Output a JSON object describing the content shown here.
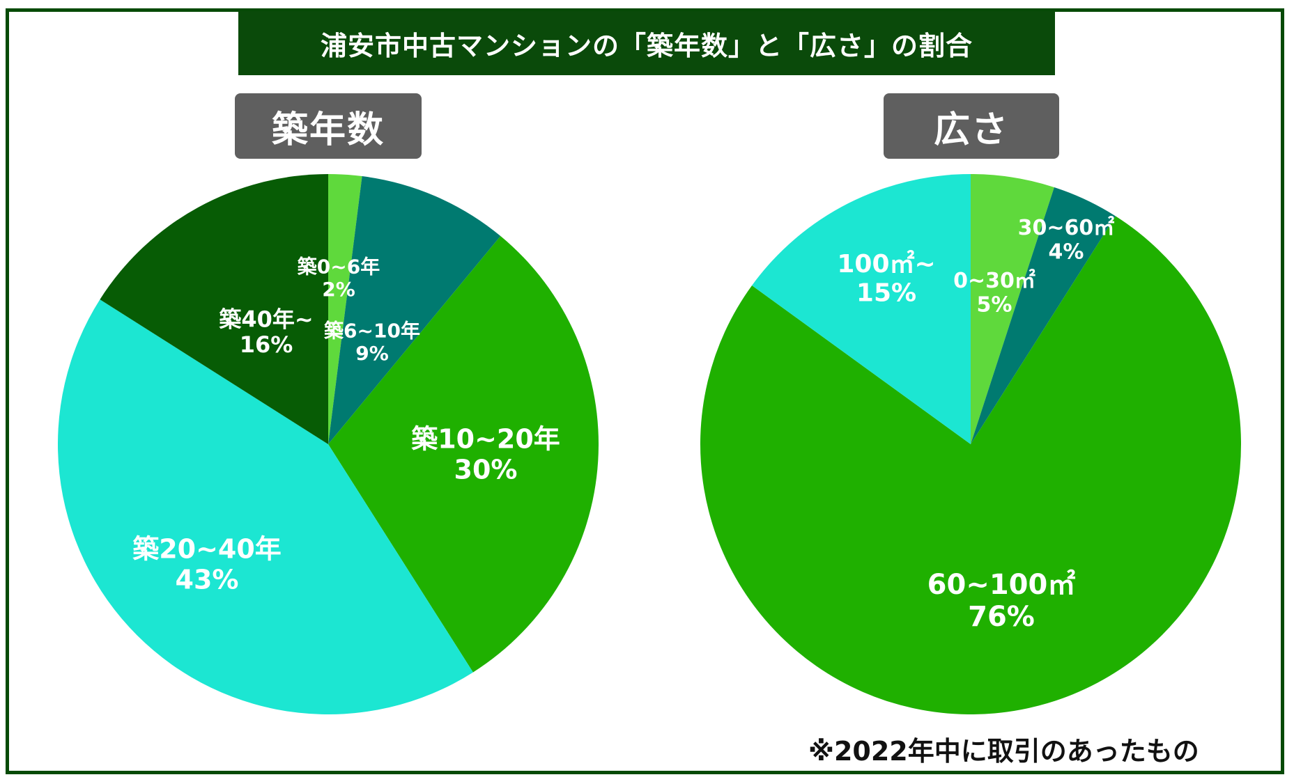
{
  "header": {
    "title": "浦安市中古マンションの「築年数」と「広さ」の割合"
  },
  "footnote": "※2022年中に取引のあったもの",
  "chart_data": [
    {
      "type": "pie",
      "title": "築年数",
      "slices": [
        {
          "label": "築0~6年",
          "percent_label": "2%",
          "value": 2,
          "color": "#5fd93c"
        },
        {
          "label": "築6~10年",
          "percent_label": "9%",
          "value": 9,
          "color": "#007a70"
        },
        {
          "label": "築10~20年",
          "percent_label": "30%",
          "value": 30,
          "color": "#1fb000"
        },
        {
          "label": "築20~40年",
          "percent_label": "43%",
          "value": 43,
          "color": "#1ce6d2"
        },
        {
          "label": "築40年~",
          "percent_label": "16%",
          "value": 16,
          "color": "#075c05"
        }
      ]
    },
    {
      "type": "pie",
      "title": "広さ",
      "slices": [
        {
          "label": "0~30㎡",
          "percent_label": "5%",
          "value": 5,
          "color": "#5fd93c"
        },
        {
          "label": "30~60㎡",
          "percent_label": "4%",
          "value": 4,
          "color": "#007a70"
        },
        {
          "label": "60~100㎡",
          "percent_label": "76%",
          "value": 76,
          "color": "#1fb000"
        },
        {
          "label": "100㎡~",
          "percent_label": "15%",
          "value": 15,
          "color": "#1ce6d2"
        }
      ]
    }
  ]
}
